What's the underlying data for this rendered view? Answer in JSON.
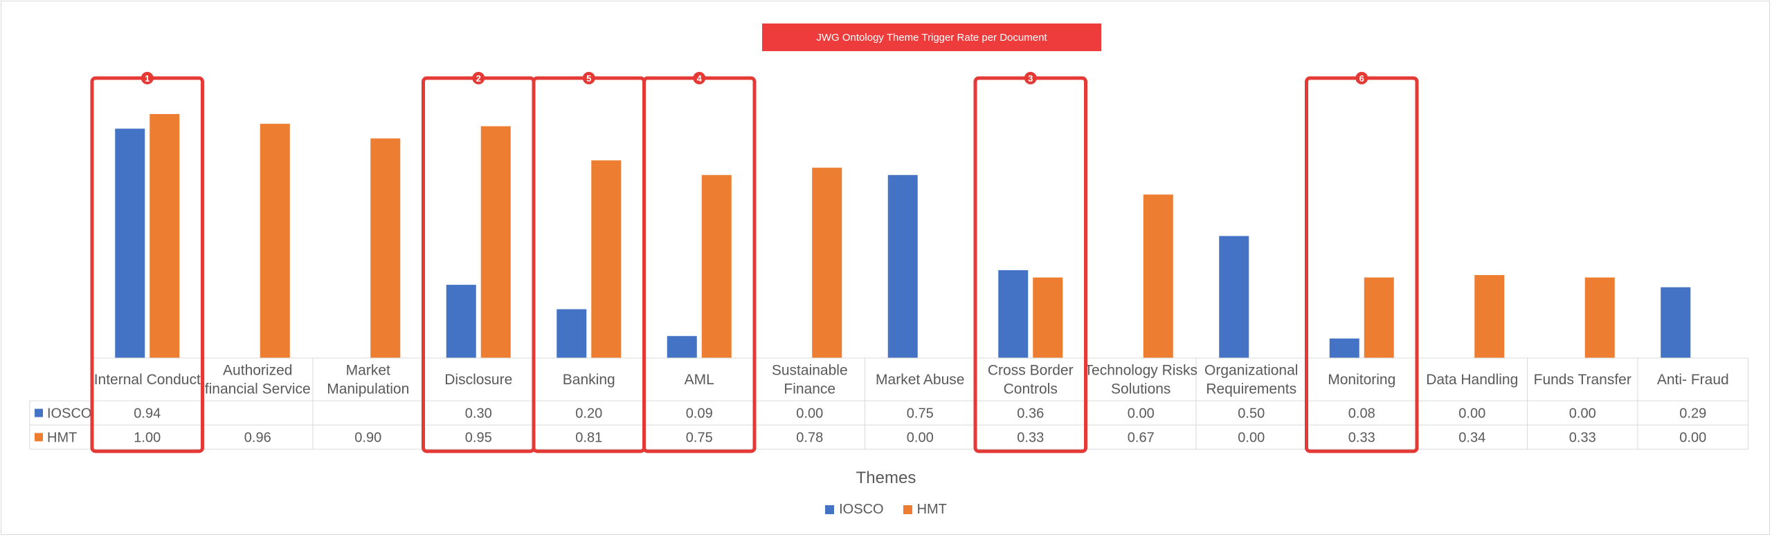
{
  "chart_data": {
    "type": "bar",
    "title": "JWG Ontology Theme Trigger Rate per Document",
    "xlabel": "Themes",
    "ylabel": "",
    "ylim": [
      0,
      1.0
    ],
    "grid": false,
    "legend_position": "bottom",
    "categories": [
      [
        "Internal Conduct"
      ],
      [
        "Authorized",
        "financial Service"
      ],
      [
        "Market",
        "Manipulation"
      ],
      [
        "Disclosure"
      ],
      [
        "Banking"
      ],
      [
        "AML"
      ],
      [
        "Sustainable",
        "Finance"
      ],
      [
        "Market Abuse"
      ],
      [
        "Cross Border",
        "Controls"
      ],
      [
        "Technology Risks",
        "Solutions"
      ],
      [
        "Organizational",
        "Requirements"
      ],
      [
        "Monitoring"
      ],
      [
        "Data Handling"
      ],
      [
        "Funds Transfer"
      ],
      [
        "Anti- Fraud"
      ]
    ],
    "series": [
      {
        "name": "IOSCO",
        "color": "#4472c4",
        "values": [
          0.94,
          null,
          null,
          0.3,
          0.2,
          0.09,
          0.0,
          0.75,
          0.36,
          0.0,
          0.5,
          0.08,
          0.0,
          0.0,
          0.29
        ],
        "labels": [
          "0.94",
          "",
          "",
          "0.30",
          "0.20",
          "0.09",
          "0.00",
          "0.75",
          "0.36",
          "0.00",
          "0.50",
          "0.08",
          "0.00",
          "0.00",
          "0.29"
        ]
      },
      {
        "name": "HMT",
        "color": "#ed7d31",
        "values": [
          1.0,
          0.96,
          0.9,
          0.95,
          0.81,
          0.75,
          0.78,
          0.0,
          0.33,
          0.67,
          0.0,
          0.33,
          0.34,
          0.33,
          0.0
        ],
        "labels": [
          "1.00",
          "0.96",
          "0.90",
          "0.95",
          "0.81",
          "0.75",
          "0.78",
          "0.00",
          "0.33",
          "0.67",
          "0.00",
          "0.33",
          "0.34",
          "0.33",
          "0.00"
        ]
      }
    ],
    "annotations": [
      {
        "label": "1",
        "category_index": 0
      },
      {
        "label": "2",
        "category_index": 3
      },
      {
        "label": "5",
        "category_index": 4
      },
      {
        "label": "4",
        "category_index": 5
      },
      {
        "label": "3",
        "category_index": 8
      },
      {
        "label": "6",
        "category_index": 11
      }
    ],
    "highlight_color": "#e53935"
  }
}
